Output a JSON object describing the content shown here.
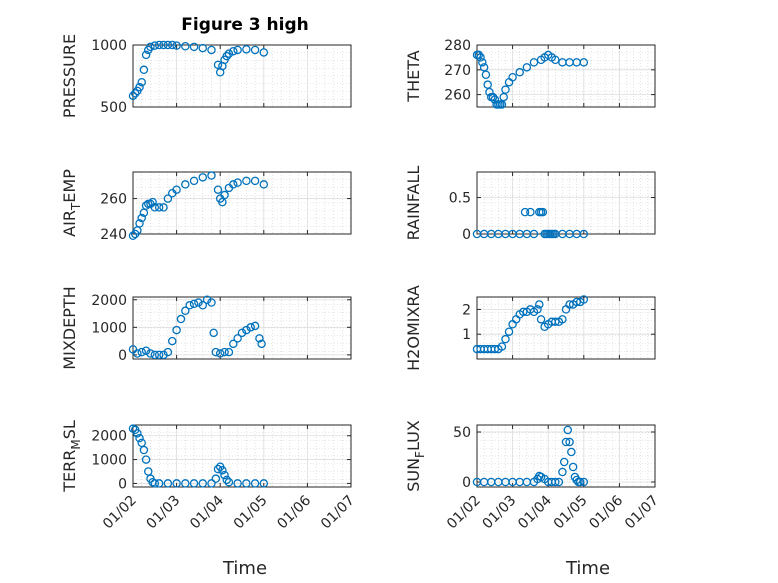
{
  "figure": {
    "title": "Figure 3 high",
    "xlabel": "Time",
    "x_tick_labels": [
      "01/02",
      "01/03",
      "01/04",
      "01/05",
      "01/06",
      "01/07"
    ],
    "marker_color": "#0072BD"
  },
  "chart_data": [
    {
      "type": "scatter",
      "ylabel": "PRESSURE",
      "ylim": [
        500,
        1000
      ],
      "yticks": [
        500,
        1000
      ],
      "xlim": [
        1,
        6
      ],
      "grid": true,
      "x": [
        1.0,
        1.05,
        1.1,
        1.15,
        1.2,
        1.25,
        1.3,
        1.35,
        1.4,
        1.5,
        1.6,
        1.7,
        1.8,
        1.9,
        2.0,
        2.2,
        2.4,
        2.6,
        2.8,
        2.95,
        3.0,
        3.05,
        3.1,
        3.15,
        3.2,
        3.3,
        3.4,
        3.6,
        3.8,
        4.0
      ],
      "y": [
        590,
        610,
        630,
        660,
        700,
        800,
        920,
        960,
        985,
        995,
        1000,
        1000,
        1000,
        1000,
        995,
        990,
        985,
        975,
        960,
        840,
        780,
        830,
        880,
        910,
        930,
        950,
        960,
        965,
        960,
        940
      ]
    },
    {
      "type": "scatter",
      "ylabel": "THETA",
      "ylim": [
        255,
        280
      ],
      "yticks": [
        260,
        270,
        280
      ],
      "xlim": [
        1,
        6
      ],
      "grid": true,
      "x": [
        1.0,
        1.05,
        1.1,
        1.15,
        1.2,
        1.25,
        1.3,
        1.35,
        1.4,
        1.45,
        1.5,
        1.55,
        1.6,
        1.65,
        1.7,
        1.75,
        1.8,
        1.9,
        2.0,
        2.2,
        2.4,
        2.6,
        2.8,
        2.9,
        3.0,
        3.1,
        3.2,
        3.4,
        3.6,
        3.8,
        4.0
      ],
      "y": [
        276,
        276,
        275,
        273,
        271,
        268,
        264,
        261,
        259,
        259,
        258,
        256,
        256,
        256,
        256,
        259,
        262,
        265,
        267,
        269,
        271,
        273,
        274,
        275,
        276,
        275,
        274,
        273,
        273,
        273,
        273
      ]
    },
    {
      "type": "scatter",
      "ylabel": "AIR_TEMP",
      "ylim": [
        240,
        275
      ],
      "yticks": [
        240,
        260
      ],
      "xlim": [
        1,
        6
      ],
      "grid": true,
      "x": [
        1.0,
        1.05,
        1.1,
        1.15,
        1.2,
        1.25,
        1.3,
        1.35,
        1.4,
        1.45,
        1.5,
        1.6,
        1.7,
        1.8,
        1.9,
        2.0,
        2.2,
        2.4,
        2.6,
        2.8,
        2.95,
        3.0,
        3.05,
        3.1,
        3.2,
        3.3,
        3.4,
        3.6,
        3.8,
        4.0
      ],
      "y": [
        239,
        240,
        242,
        246,
        249,
        252,
        256,
        257,
        257,
        258,
        255,
        255,
        255,
        260,
        263,
        265,
        268,
        270,
        272,
        273,
        265,
        260,
        258,
        262,
        266,
        268,
        269,
        270,
        270,
        268
      ]
    },
    {
      "type": "scatter",
      "ylabel": "RAINFALL",
      "ylim": [
        0,
        0.85
      ],
      "yticks": [
        0,
        0.5
      ],
      "xlim": [
        1,
        6
      ],
      "grid": true,
      "x": [
        1.0,
        1.2,
        1.4,
        1.6,
        1.8,
        2.0,
        2.2,
        2.4,
        2.6,
        2.75,
        2.8,
        2.85,
        2.9,
        2.95,
        3.0,
        3.05,
        3.1,
        3.15,
        3.2,
        3.4,
        3.6,
        3.8,
        4.0,
        2.35,
        2.5
      ],
      "y": [
        0,
        0,
        0,
        0,
        0,
        0,
        0,
        0,
        0,
        0.3,
        0.3,
        0.3,
        0,
        0,
        0,
        0,
        0,
        0,
        0,
        0,
        0,
        0,
        0,
        0.3,
        0.3
      ]
    },
    {
      "type": "scatter",
      "ylabel": "MIXDEPTH",
      "ylim": [
        -150,
        2100
      ],
      "yticks": [
        0,
        1000,
        2000
      ],
      "xlim": [
        1,
        6
      ],
      "grid": true,
      "x": [
        1.0,
        1.1,
        1.2,
        1.3,
        1.4,
        1.5,
        1.6,
        1.7,
        1.8,
        1.9,
        2.0,
        2.1,
        2.2,
        2.3,
        2.4,
        2.5,
        2.6,
        2.7,
        2.8,
        2.85,
        2.9,
        3.0,
        3.1,
        3.2,
        3.3,
        3.4,
        3.5,
        3.6,
        3.7,
        3.8,
        3.9,
        3.95
      ],
      "y": [
        200,
        50,
        100,
        150,
        50,
        0,
        0,
        0,
        100,
        500,
        900,
        1300,
        1600,
        1800,
        1850,
        1900,
        1800,
        2000,
        1900,
        800,
        100,
        50,
        100,
        100,
        400,
        600,
        800,
        900,
        1000,
        1050,
        600,
        400
      ]
    },
    {
      "type": "scatter",
      "ylabel": "H2OMIXRA",
      "ylim": [
        0,
        2.5
      ],
      "yticks": [
        1,
        2
      ],
      "xlim": [
        1,
        6
      ],
      "grid": true,
      "x": [
        1.0,
        1.1,
        1.2,
        1.3,
        1.4,
        1.5,
        1.6,
        1.7,
        1.8,
        1.9,
        2.0,
        2.1,
        2.2,
        2.3,
        2.4,
        2.5,
        2.6,
        2.7,
        2.75,
        2.8,
        2.9,
        3.0,
        3.1,
        3.2,
        3.3,
        3.4,
        3.5,
        3.6,
        3.7,
        3.8,
        3.9,
        4.0
      ],
      "y": [
        0.4,
        0.4,
        0.4,
        0.4,
        0.4,
        0.4,
        0.4,
        0.5,
        0.8,
        1.1,
        1.4,
        1.6,
        1.8,
        1.9,
        1.9,
        2.0,
        1.9,
        2.0,
        2.2,
        1.6,
        1.3,
        1.4,
        1.5,
        1.5,
        1.5,
        1.6,
        2.0,
        2.2,
        2.2,
        2.3,
        2.3,
        2.4
      ]
    },
    {
      "type": "scatter",
      "ylabel": "TERR_MSL",
      "ylim": [
        -150,
        2450
      ],
      "yticks": [
        0,
        1000,
        2000
      ],
      "xlim": [
        1,
        6
      ],
      "grid": true,
      "x": [
        1.0,
        1.05,
        1.1,
        1.15,
        1.2,
        1.25,
        1.3,
        1.35,
        1.4,
        1.45,
        1.5,
        1.6,
        1.8,
        2.0,
        2.2,
        2.4,
        2.6,
        2.8,
        2.9,
        2.95,
        3.0,
        3.05,
        3.1,
        3.15,
        3.2,
        3.4,
        3.6,
        3.8,
        4.0
      ],
      "y": [
        2300,
        2250,
        2100,
        1900,
        1700,
        1400,
        1000,
        500,
        200,
        50,
        0,
        0,
        0,
        0,
        0,
        0,
        0,
        0,
        200,
        600,
        700,
        550,
        350,
        150,
        50,
        0,
        0,
        0,
        0
      ]
    },
    {
      "type": "scatter",
      "ylabel": "SUN_FLUX",
      "ylim": [
        -5,
        57
      ],
      "yticks": [
        0,
        50
      ],
      "xlim": [
        1,
        6
      ],
      "grid": true,
      "x": [
        1.0,
        1.2,
        1.4,
        1.6,
        1.8,
        2.0,
        2.2,
        2.4,
        2.6,
        2.7,
        2.75,
        2.8,
        2.9,
        3.0,
        3.1,
        3.2,
        3.3,
        3.4,
        3.45,
        3.5,
        3.55,
        3.6,
        3.65,
        3.7,
        3.75,
        3.8,
        3.85,
        3.9,
        4.0
      ],
      "y": [
        0,
        0,
        0,
        0,
        0,
        0,
        0,
        0,
        0,
        3,
        6,
        5,
        3,
        0,
        0,
        0,
        0,
        10,
        20,
        40,
        52,
        40,
        30,
        15,
        5,
        2,
        0,
        0,
        0
      ]
    }
  ]
}
